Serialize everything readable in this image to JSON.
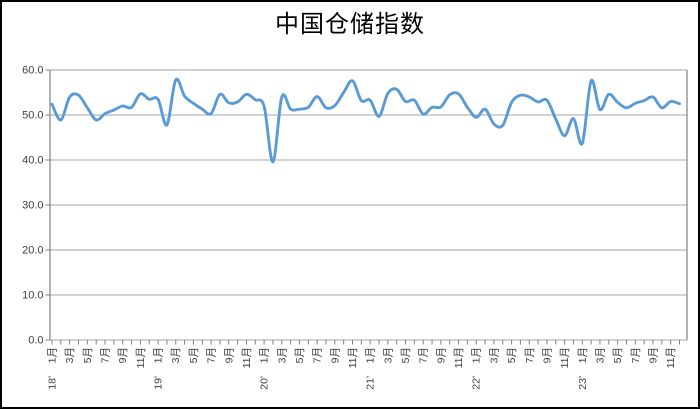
{
  "chart_data": {
    "type": "line",
    "title": "中国仓储指数",
    "legend": false,
    "grid": true,
    "x": {
      "unit": "month",
      "start": "2018-01",
      "end": "2023-12",
      "years": [
        "18'",
        "19'",
        "20'",
        "21'",
        "22'",
        "23'"
      ],
      "labeled_months": [
        "1月",
        "3月",
        "5月",
        "7月",
        "9月",
        "11月"
      ],
      "label_every_n_months": 2,
      "tick_every_n_months": 1
    },
    "y": {
      "min": 0,
      "max": 60,
      "step": 10,
      "tick_labels": [
        "0.0",
        "10.0",
        "20.0",
        "30.0",
        "40.0",
        "50.0",
        "60.0"
      ]
    },
    "series": [
      {
        "name": "中国仓储指数",
        "color": "#5B9BD5",
        "values": [
          52.4,
          48.9,
          54.0,
          54.4,
          51.6,
          48.9,
          50.3,
          51.1,
          52.0,
          51.7,
          54.7,
          53.5,
          53.5,
          47.8,
          57.8,
          54.2,
          52.6,
          51.3,
          50.3,
          54.6,
          52.7,
          52.9,
          54.6,
          53.4,
          51.9,
          39.6,
          54.0,
          51.3,
          51.3,
          51.7,
          54.1,
          51.6,
          52.1,
          55.0,
          57.6,
          53.2,
          53.3,
          49.7,
          54.8,
          55.7,
          53.0,
          53.3,
          50.2,
          51.7,
          51.8,
          54.5,
          54.7,
          51.7,
          49.5,
          51.3,
          48.0,
          47.7,
          52.8,
          54.4,
          54.0,
          52.9,
          53.3,
          49.1,
          45.4,
          49.2,
          43.7,
          57.6,
          51.2,
          54.6,
          52.8,
          51.6,
          52.6,
          53.2,
          54.0,
          51.6,
          53.0,
          52.5
        ]
      }
    ]
  },
  "style": {
    "line_color": "#5B9BD5",
    "grid_color": "#A6A6A6",
    "axis_color": "#808080",
    "tick_text_color": "#404040",
    "title_color": "#000000",
    "border_color": "#000000",
    "background": "#FFFFFF"
  }
}
